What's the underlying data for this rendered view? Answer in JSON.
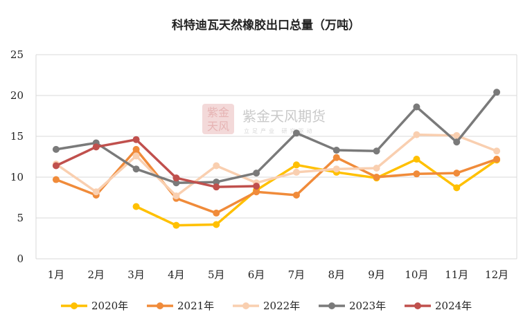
{
  "chart_data": {
    "type": "line",
    "title": "科特迪瓦天然橡胶出口总量（万吨）",
    "categories": [
      "1月",
      "2月",
      "3月",
      "4月",
      "5月",
      "6月",
      "7月",
      "8月",
      "9月",
      "10月",
      "11月",
      "12月"
    ],
    "ylim": [
      0,
      25
    ],
    "yticks": [
      0,
      5,
      10,
      15,
      20,
      25
    ],
    "grid": true,
    "legend": "bottom",
    "series": [
      {
        "name": "2020年",
        "color": "#ffc000",
        "values": [
          null,
          null,
          6.4,
          4.1,
          4.2,
          8.4,
          11.5,
          10.6,
          9.9,
          12.2,
          8.7,
          12.1
        ]
      },
      {
        "name": "2021年",
        "color": "#f08b3a",
        "values": [
          9.7,
          7.8,
          13.4,
          7.4,
          5.6,
          8.2,
          7.8,
          12.4,
          10.0,
          10.4,
          10.5,
          12.2
        ]
      },
      {
        "name": "2022年",
        "color": "#f9cfb0",
        "values": [
          11.6,
          8.2,
          12.6,
          7.7,
          11.4,
          9.3,
          10.6,
          11.0,
          11.1,
          15.2,
          15.1,
          13.2
        ]
      },
      {
        "name": "2023年",
        "color": "#7a7a7a",
        "values": [
          13.4,
          14.2,
          11.0,
          9.3,
          9.4,
          10.5,
          15.4,
          13.3,
          13.2,
          18.6,
          14.3,
          20.4
        ]
      },
      {
        "name": "2024年",
        "color": "#c0504d",
        "values": [
          11.4,
          13.7,
          14.6,
          9.9,
          8.8,
          8.9,
          null,
          null,
          null,
          null,
          null,
          null
        ]
      }
    ]
  },
  "watermark": {
    "logo_glyphs": "紫金\n天风",
    "name": "紫金天风期货",
    "subtitle": "立足产业 研究驱动"
  }
}
